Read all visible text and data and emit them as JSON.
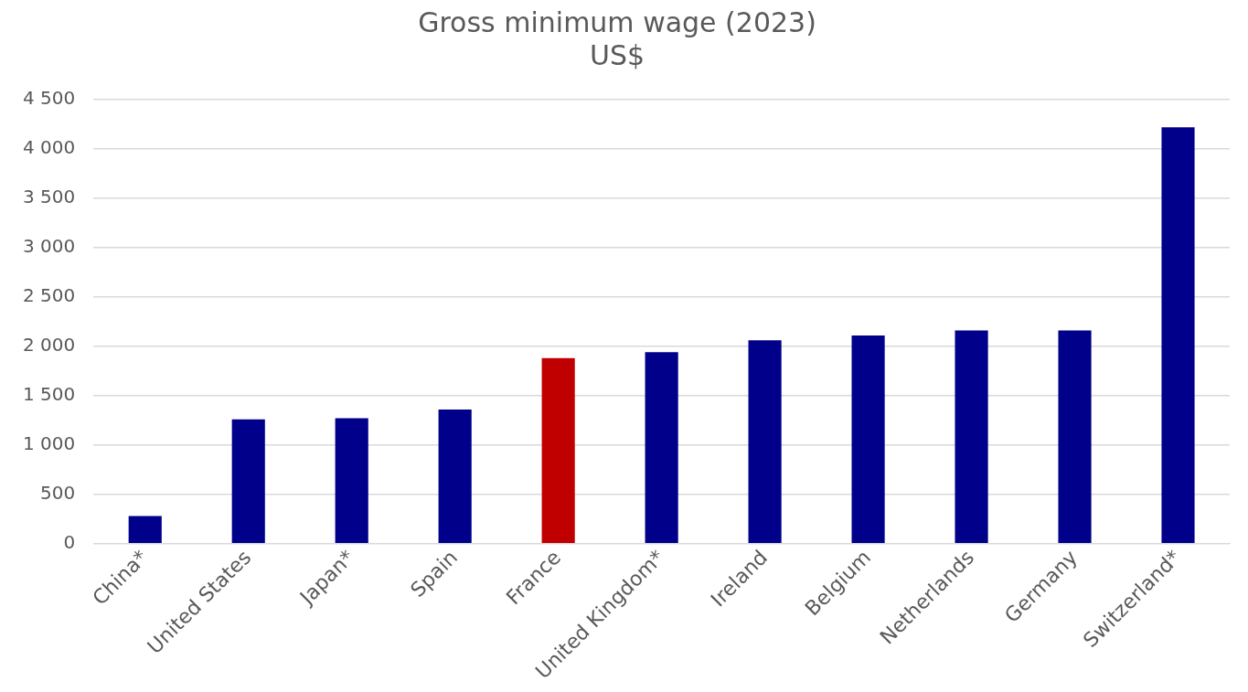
{
  "chart_data": {
    "type": "bar",
    "title": "Gross minimum wage (2023)",
    "subtitle": "US$",
    "categories": [
      "China*",
      "United States",
      "Japan*",
      "Spain",
      "France",
      "United Kingdom*",
      "Ireland",
      "Belgium",
      "Netherlands",
      "Germany",
      "Switzerland*"
    ],
    "values": [
      280,
      1260,
      1270,
      1360,
      1880,
      1940,
      2060,
      2110,
      2160,
      2160,
      4220
    ],
    "colors": [
      "#00008b",
      "#00008b",
      "#00008b",
      "#00008b",
      "#c00000",
      "#00008b",
      "#00008b",
      "#00008b",
      "#00008b",
      "#00008b",
      "#00008b"
    ],
    "ylim": [
      0,
      4500
    ],
    "yticks": [
      0,
      500,
      {
        "value": 1000,
        "label": "1 000"
      },
      {
        "value": 1500,
        "label": "1 500"
      },
      {
        "value": 2000,
        "label": "2 000"
      },
      {
        "value": 2500,
        "label": "2 500"
      },
      {
        "value": 3000,
        "label": "3 000"
      },
      {
        "value": 3500,
        "label": "3 500"
      },
      {
        "value": 4000,
        "label": "4 000"
      },
      {
        "value": 4500,
        "label": "4 500"
      }
    ],
    "grid": "y",
    "legend": false
  }
}
